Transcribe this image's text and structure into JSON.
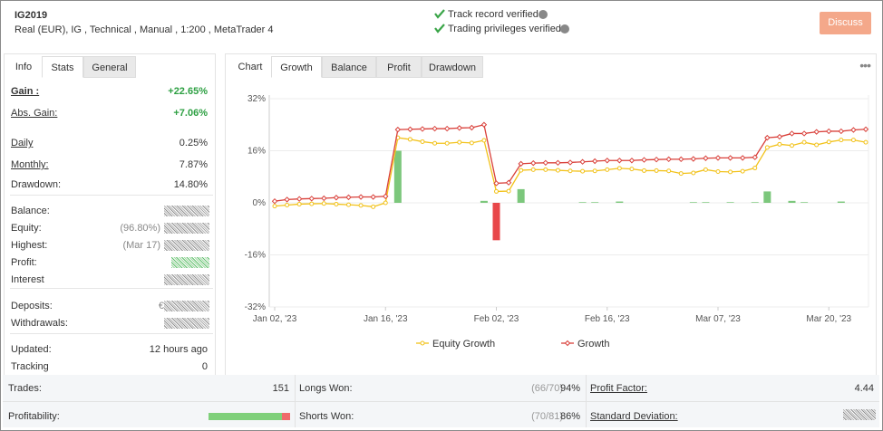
{
  "header": {
    "title": "IG2019",
    "subtitle": "Real (EUR), IG , Technical , Manual , 1:200 , MetaTrader 4",
    "verified": [
      "Track record verified",
      "Trading privileges verified"
    ],
    "button": "Discuss"
  },
  "left_tabs": [
    "Info",
    "Stats",
    "General"
  ],
  "stats": [
    {
      "label": "Gain :",
      "value": "+22.65%"
    },
    {
      "label": "Abs. Gain:",
      "value": "+7.06%"
    },
    {
      "label": "Daily",
      "value": "0.25%"
    },
    {
      "label": "Monthly:",
      "value": "7.87%"
    },
    {
      "label": "Drawdown:",
      "value": "14.80%"
    },
    {
      "label": "Balance:"
    },
    {
      "label": "Equity:",
      "note": "(96.80%)"
    },
    {
      "label": "Highest:",
      "note": "(Mar 17)"
    },
    {
      "label": "Profit:"
    },
    {
      "label": "Interest"
    },
    {
      "label": "Deposits:",
      "note": "€"
    },
    {
      "label": "Withdrawals:"
    },
    {
      "label": "Updated:",
      "value": "12 hours ago"
    },
    {
      "label": "Tracking",
      "value": "0"
    }
  ],
  "chart_tabs": [
    "Chart",
    "Growth",
    "Balance",
    "Profit",
    "Drawdown"
  ],
  "chart_data": {
    "type": "line",
    "categories": [
      "Jan 02, '23",
      null,
      null,
      null,
      null,
      null,
      null,
      null,
      null,
      "Jan 16, '23",
      null,
      null,
      null,
      null,
      null,
      null,
      null,
      null,
      "Feb 02, '23",
      null,
      null,
      null,
      null,
      null,
      null,
      null,
      null,
      "Feb 16, '23",
      null,
      null,
      null,
      null,
      null,
      null,
      null,
      null,
      "Mar 07, '23",
      null,
      null,
      null,
      null,
      null,
      null,
      null,
      null,
      "Mar 20, '23",
      null,
      null,
      null
    ],
    "ylim": [
      -32,
      32
    ],
    "yticks": [
      {
        "value": -32,
        "label": "-32%"
      },
      {
        "value": -16,
        "label": "-16%"
      },
      {
        "value": 0,
        "label": "0%"
      },
      {
        "value": 16,
        "label": "16%"
      },
      {
        "value": 32,
        "label": "32%"
      }
    ],
    "grid": true,
    "bars": {
      "color": "#7cc77c",
      "negative_color": "#e8474a",
      "values": [
        null,
        null,
        null,
        null,
        null,
        null,
        null,
        null,
        null,
        null,
        16,
        null,
        null,
        null,
        null,
        null,
        null,
        0.6,
        -11.5,
        null,
        4.2,
        null,
        null,
        null,
        null,
        0.2,
        0.2,
        null,
        0.4,
        null,
        null,
        null,
        null,
        null,
        0.2,
        0.2,
        null,
        0.2,
        null,
        0.2,
        3.5,
        null,
        0.6,
        0.2,
        null,
        null,
        0.4,
        null,
        null
      ]
    },
    "series": [
      {
        "name": "Equity Growth",
        "color": "#f2c21a",
        "values": [
          -1,
          -0.7,
          -0.4,
          -0.3,
          -0.2,
          -0.4,
          -0.6,
          -0.8,
          -1.2,
          0,
          20,
          19.5,
          18.8,
          18.3,
          18.3,
          18.6,
          18.4,
          19.2,
          3.5,
          3.6,
          10,
          10.2,
          10.2,
          10,
          9.8,
          9.7,
          9.8,
          10.2,
          10.6,
          10.4,
          9.9,
          9.9,
          9.8,
          9,
          9.2,
          10.2,
          9.6,
          9.5,
          9.7,
          10.7,
          17,
          18,
          17.6,
          18.6,
          17.8,
          18.7,
          19.3,
          19.3,
          18.6
        ]
      },
      {
        "name": "Growth",
        "color": "#d9403a",
        "values": [
          0.5,
          1,
          1.2,
          1.3,
          1.4,
          1.6,
          1.7,
          1.8,
          1.8,
          2,
          22.5,
          22.6,
          22.7,
          22.8,
          22.8,
          23,
          23.1,
          24,
          6,
          6.2,
          12,
          12.2,
          12.3,
          12.3,
          12.4,
          12.6,
          12.8,
          13,
          13,
          13,
          13.2,
          13.3,
          13.4,
          13.4,
          13.5,
          13.7,
          13.8,
          13.8,
          13.8,
          14,
          20,
          20.3,
          21.3,
          21.3,
          21.8,
          22,
          22,
          22.4,
          22.6
        ]
      }
    ]
  },
  "bottom": {
    "trades": {
      "label": "Trades:",
      "value": "151"
    },
    "profitability": {
      "label": "Profitability:",
      "value": 90
    },
    "longs": {
      "label": "Longs Won:",
      "note": "(66/70)",
      "value": "94%"
    },
    "shorts": {
      "label": "Shorts Won:",
      "note": "(70/81)",
      "value": "86%"
    },
    "profit_factor": {
      "label": "Profit Factor:",
      "value": "4.44"
    },
    "std_dev": {
      "label": "Standard Deviation:"
    }
  }
}
